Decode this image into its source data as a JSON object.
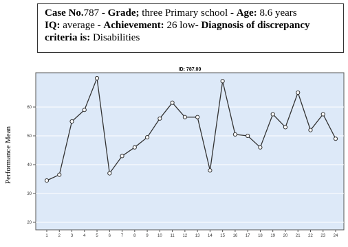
{
  "case_info": {
    "case_label": "Case No.",
    "case_value": "787 -",
    "grade_label": "Grade;",
    "grade_value": " three Primary school -",
    "age_label": "Age:",
    "age_value": " 8.6 years",
    "iq_label": "IQ:",
    "iq_value": " average -",
    "achievement_label": "Achievement:",
    "achievement_value": " 26 low-",
    "diagnosis_label": "Diagnosis of discrepancy criteria is:",
    "diagnosis_value": " Disabilities"
  },
  "colors": {
    "plot_bg": "#dde9f8",
    "line": "#333333",
    "frame": "#555555"
  },
  "chart_data": {
    "type": "line",
    "title": "ID: 787.00",
    "ylabel": "Performance Mean",
    "xlabel": "",
    "x": [
      1,
      2,
      3,
      4,
      5,
      6,
      7,
      8,
      9,
      10,
      11,
      12,
      13,
      14,
      15,
      16,
      17,
      18,
      19,
      20,
      21,
      22,
      23,
      24
    ],
    "values": [
      34.5,
      36.5,
      55,
      59,
      70,
      37,
      43,
      46,
      49.5,
      56,
      61.5,
      56.5,
      56.5,
      38,
      69,
      50.5,
      50,
      46,
      57.5,
      53,
      65,
      52,
      57.5,
      49
    ],
    "ylim": [
      20,
      70
    ],
    "yticks": [
      "20",
      "30",
      "40",
      "50",
      "60"
    ],
    "grid": true,
    "marker": "circle"
  }
}
